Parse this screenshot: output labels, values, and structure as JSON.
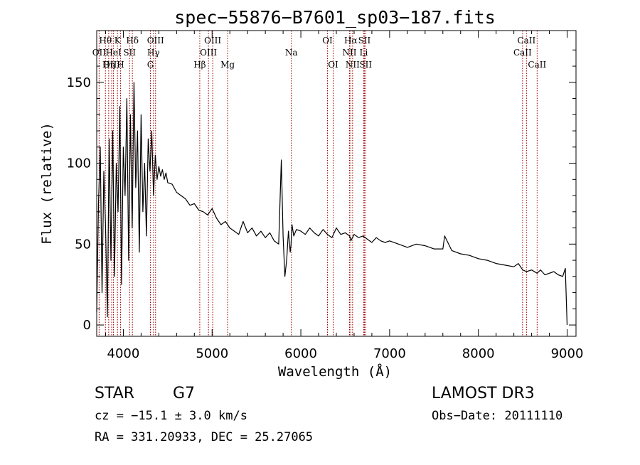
{
  "chart_data": {
    "type": "line",
    "title": "spec−55876−B7601_sp03−187.fits",
    "xlabel": "Wavelength (Å)",
    "ylabel": "Flux (relative)",
    "xlim": [
      3700,
      9100
    ],
    "ylim": [
      -7,
      182
    ],
    "x_ticks": [
      4000,
      5000,
      6000,
      7000,
      8000,
      9000
    ],
    "x_tick_labels": [
      "4000",
      "5000",
      "6000",
      "7000",
      "8000",
      "9000"
    ],
    "y_ticks": [
      0,
      50,
      100,
      150
    ],
    "y_tick_labels": [
      "0",
      "50",
      "100",
      "150"
    ],
    "grid": false,
    "legend": "none",
    "series": [
      {
        "name": "flux",
        "color": "#000000",
        "x": [
          3700,
          3720,
          3740,
          3760,
          3780,
          3800,
          3820,
          3840,
          3860,
          3880,
          3900,
          3920,
          3940,
          3960,
          3980,
          4000,
          4020,
          4040,
          4060,
          4080,
          4100,
          4120,
          4140,
          4160,
          4180,
          4200,
          4220,
          4240,
          4260,
          4280,
          4300,
          4320,
          4340,
          4360,
          4380,
          4400,
          4420,
          4440,
          4460,
          4480,
          4500,
          4550,
          4600,
          4650,
          4700,
          4750,
          4800,
          4850,
          4900,
          4950,
          5000,
          5050,
          5100,
          5150,
          5200,
          5250,
          5300,
          5350,
          5400,
          5450,
          5500,
          5550,
          5600,
          5650,
          5700,
          5750,
          5780,
          5800,
          5820,
          5840,
          5860,
          5880,
          5890,
          5900,
          5920,
          5950,
          6000,
          6050,
          6100,
          6150,
          6200,
          6250,
          6300,
          6350,
          6400,
          6450,
          6500,
          6550,
          6563,
          6600,
          6650,
          6700,
          6750,
          6800,
          6850,
          6900,
          6950,
          7000,
          7100,
          7200,
          7300,
          7400,
          7500,
          7600,
          7620,
          7700,
          7800,
          7900,
          8000,
          8100,
          8200,
          8300,
          8400,
          8450,
          8500,
          8542,
          8600,
          8662,
          8700,
          8750,
          8800,
          8850,
          8900,
          8950,
          8980,
          9000
        ],
        "values": [
          8,
          75,
          110,
          20,
          95,
          60,
          5,
          115,
          40,
          120,
          30,
          100,
          70,
          135,
          25,
          110,
          80,
          140,
          40,
          130,
          60,
          150,
          85,
          120,
          45,
          130,
          70,
          100,
          55,
          115,
          95,
          120,
          80,
          105,
          90,
          98,
          92,
          96,
          90,
          94,
          88,
          87,
          82,
          80,
          78,
          74,
          75,
          71,
          70,
          68,
          72,
          66,
          62,
          64,
          60,
          58,
          56,
          64,
          57,
          60,
          55,
          58,
          54,
          57,
          52,
          50,
          102,
          55,
          30,
          40,
          58,
          45,
          50,
          62,
          55,
          59,
          58,
          56,
          60,
          57,
          55,
          59,
          56,
          54,
          60,
          56,
          57,
          55,
          52,
          56,
          54,
          55,
          53,
          51,
          54,
          52,
          51,
          52,
          50,
          48,
          50,
          49,
          47,
          47,
          55,
          46,
          44,
          43,
          41,
          40,
          38,
          37,
          36,
          38,
          34,
          33,
          34,
          32,
          34,
          31,
          32,
          33,
          31,
          30,
          35,
          0
        ]
      }
    ],
    "annotations": [
      {
        "label": "Hθ",
        "x": 3798,
        "row": 1
      },
      {
        "label": "OII",
        "x": 3727,
        "row": 2
      },
      {
        "label": "OIII",
        "x": 3869,
        "row": 3
      },
      {
        "label": "K",
        "x": 3934,
        "row": 1
      },
      {
        "label": "HeI",
        "x": 3889,
        "row": 2
      },
      {
        "label": "Hη",
        "x": 3835,
        "row": 3
      },
      {
        "label": "Hδ",
        "x": 4102,
        "row": 1
      },
      {
        "label": "SII",
        "x": 4070,
        "row": 2
      },
      {
        "label": "H",
        "x": 3968,
        "row": 3
      },
      {
        "label": "OIII",
        "x": 4363,
        "row": 1
      },
      {
        "label": "Hγ",
        "x": 4340,
        "row": 2
      },
      {
        "label": "G",
        "x": 4305,
        "row": 3
      },
      {
        "label": "OIII",
        "x": 5007,
        "row": 1
      },
      {
        "label": "OIII",
        "x": 4959,
        "row": 2
      },
      {
        "label": "Hβ",
        "x": 4861,
        "row": 3
      },
      {
        "label": "Mg",
        "x": 5175,
        "row": 3
      },
      {
        "label": "Na",
        "x": 5893,
        "row": 2
      },
      {
        "label": "OI",
        "x": 6300,
        "row": 1
      },
      {
        "label": "OI",
        "x": 6364,
        "row": 3
      },
      {
        "label": "Hα",
        "x": 6563,
        "row": 1
      },
      {
        "label": "NII",
        "x": 6548,
        "row": 2
      },
      {
        "label": "NII",
        "x": 6583,
        "row": 3
      },
      {
        "label": "SII",
        "x": 6716,
        "row": 1
      },
      {
        "label": "Li",
        "x": 6708,
        "row": 2
      },
      {
        "label": "SII",
        "x": 6731,
        "row": 3
      },
      {
        "label": "CaII",
        "x": 8542,
        "row": 1
      },
      {
        "label": "CaII",
        "x": 8498,
        "row": 2
      },
      {
        "label": "CaII",
        "x": 8662,
        "row": 3
      }
    ]
  },
  "info": {
    "object_class": "STAR",
    "subclass": "G7",
    "cz": "cz = −15.1 ± 3.0 km/s",
    "coords": "RA = 331.20933, DEC =  25.27065",
    "survey": "LAMOST DR3",
    "obs_date": "Obs−Date: 20111110"
  },
  "colors": {
    "axis": "#000000",
    "line_marker": "#a00000"
  }
}
